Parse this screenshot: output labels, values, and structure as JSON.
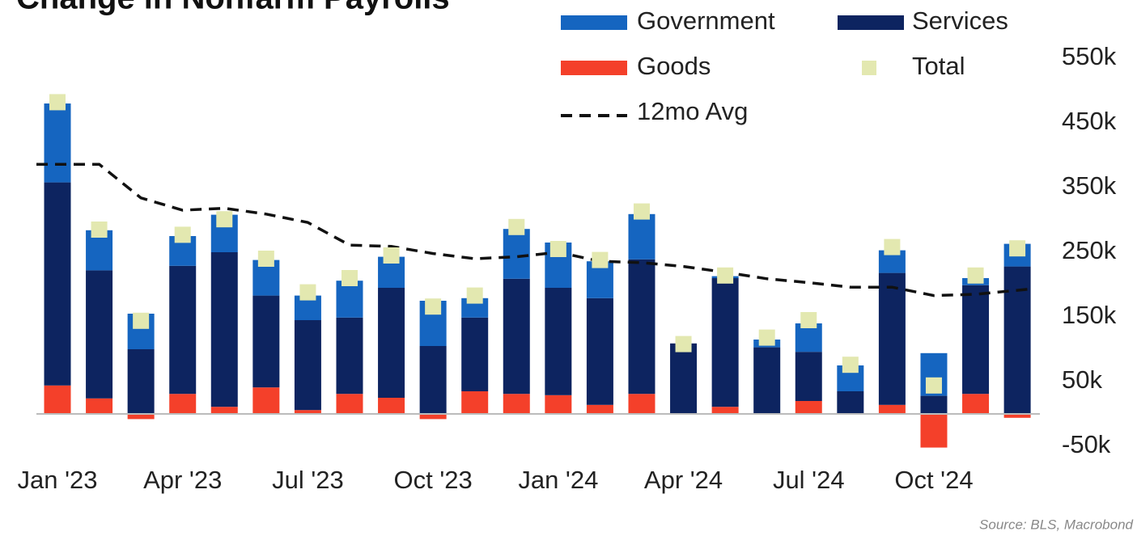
{
  "chart_data": {
    "type": "bar",
    "stacked": true,
    "title": "Change in Nonfarm Payrolls",
    "source": "Source: BLS, Macrobond",
    "categories": [
      "Jan '23",
      null,
      null,
      "Apr '23",
      null,
      null,
      "Jul '23",
      null,
      null,
      "Oct '23",
      null,
      null,
      "Jan '24",
      null,
      null,
      "Apr '24",
      null,
      null,
      "Jul '24",
      null,
      null,
      "Oct '24",
      null,
      null
    ],
    "series": [
      {
        "name": "Goods",
        "type": "bar",
        "color": "#f4402a",
        "values": [
          44,
          24,
          -8,
          31,
          11,
          41,
          6,
          31,
          25,
          -8,
          35,
          31,
          29,
          14,
          31,
          0,
          11,
          0,
          20,
          0,
          14,
          -52,
          31,
          -6
        ]
      },
      {
        "name": "Services",
        "type": "bar",
        "color": "#0d2460",
        "values": [
          314,
          198,
          100,
          198,
          239,
          142,
          139,
          118,
          170,
          105,
          114,
          178,
          166,
          165,
          208,
          109,
          199,
          103,
          76,
          35,
          204,
          28,
          168,
          228
        ]
      },
      {
        "name": "Government",
        "type": "bar",
        "color": "#1565c0",
        "values": [
          122,
          62,
          55,
          46,
          58,
          55,
          38,
          57,
          48,
          70,
          30,
          77,
          70,
          57,
          70,
          0,
          3,
          12,
          44,
          40,
          35,
          66,
          11,
          35
        ]
      },
      {
        "name": "Total",
        "type": "scatter",
        "color": "#e3e8b0",
        "values": [
          482,
          285,
          144,
          277,
          301,
          240,
          188,
          210,
          245,
          166,
          183,
          289,
          255,
          238,
          313,
          108,
          214,
          118,
          145,
          76,
          258,
          44,
          214,
          256
        ]
      },
      {
        "name": "12mo Avg",
        "type": "line",
        "color": "#111111",
        "dashed": true,
        "values": [
          386,
          386,
          334,
          315,
          318,
          309,
          296,
          261,
          259,
          248,
          240,
          243,
          250,
          236,
          234,
          228,
          219,
          209,
          203,
          196,
          196,
          183,
          185,
          193
        ]
      }
    ],
    "ylim": [
      -60,
      600
    ],
    "yticks": [
      {
        "value": -50,
        "label": "-50k"
      },
      {
        "value": 50,
        "label": "50k"
      },
      {
        "value": 150,
        "label": "150k"
      },
      {
        "value": 250,
        "label": "250k"
      },
      {
        "value": 350,
        "label": "350k"
      },
      {
        "value": 450,
        "label": "450k"
      },
      {
        "value": 550,
        "label": "550k"
      }
    ],
    "y_axis_side": "right",
    "grid": false
  }
}
